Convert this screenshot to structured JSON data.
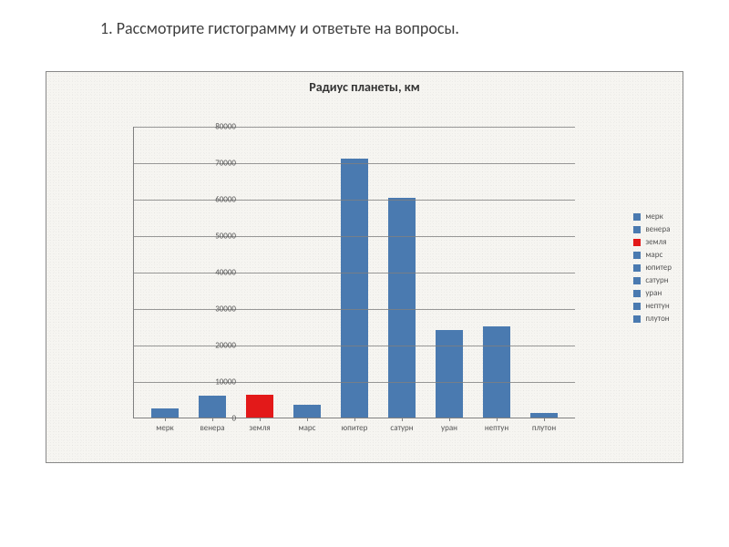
{
  "heading": "1. Рассмотрите гистограмму и ответьте на вопросы.",
  "chart": {
    "type": "bar",
    "title": "Радиус планеты, км",
    "title_fontsize": 14,
    "categories": [
      "мерк",
      "венера",
      "земля",
      "марс",
      "юпитер",
      "сатурн",
      "уран",
      "нептун",
      "плутон"
    ],
    "values": [
      2440,
      6050,
      6370,
      3400,
      71000,
      60200,
      24000,
      25000,
      1150
    ],
    "bar_colors": [
      "#4a7ab0",
      "#4a7ab0",
      "#e31919",
      "#4a7ab0",
      "#4a7ab0",
      "#4a7ab0",
      "#4a7ab0",
      "#4a7ab0",
      "#4a7ab0"
    ],
    "ylim": [
      0,
      80000
    ],
    "ytick_step": 10000,
    "yticks": [
      "0",
      "10000",
      "20000",
      "30000",
      "40000",
      "50000",
      "60000",
      "70000",
      "80000"
    ],
    "grid_color": "#808080",
    "background_color": "#f6f5f1",
    "axis_fontsize": 9,
    "bar_width": 0.56,
    "legend_items": [
      {
        "label": "мерк",
        "color": "#4a7ab0"
      },
      {
        "label": "венера",
        "color": "#4a7ab0"
      },
      {
        "label": "земля",
        "color": "#e31919"
      },
      {
        "label": "марс",
        "color": "#4a7ab0"
      },
      {
        "label": "юпитер",
        "color": "#4a7ab0"
      },
      {
        "label": "сатурн",
        "color": "#4a7ab0"
      },
      {
        "label": "уран",
        "color": "#4a7ab0"
      },
      {
        "label": "нептун",
        "color": "#4a7ab0"
      },
      {
        "label": "плутон",
        "color": "#4a7ab0"
      }
    ]
  }
}
